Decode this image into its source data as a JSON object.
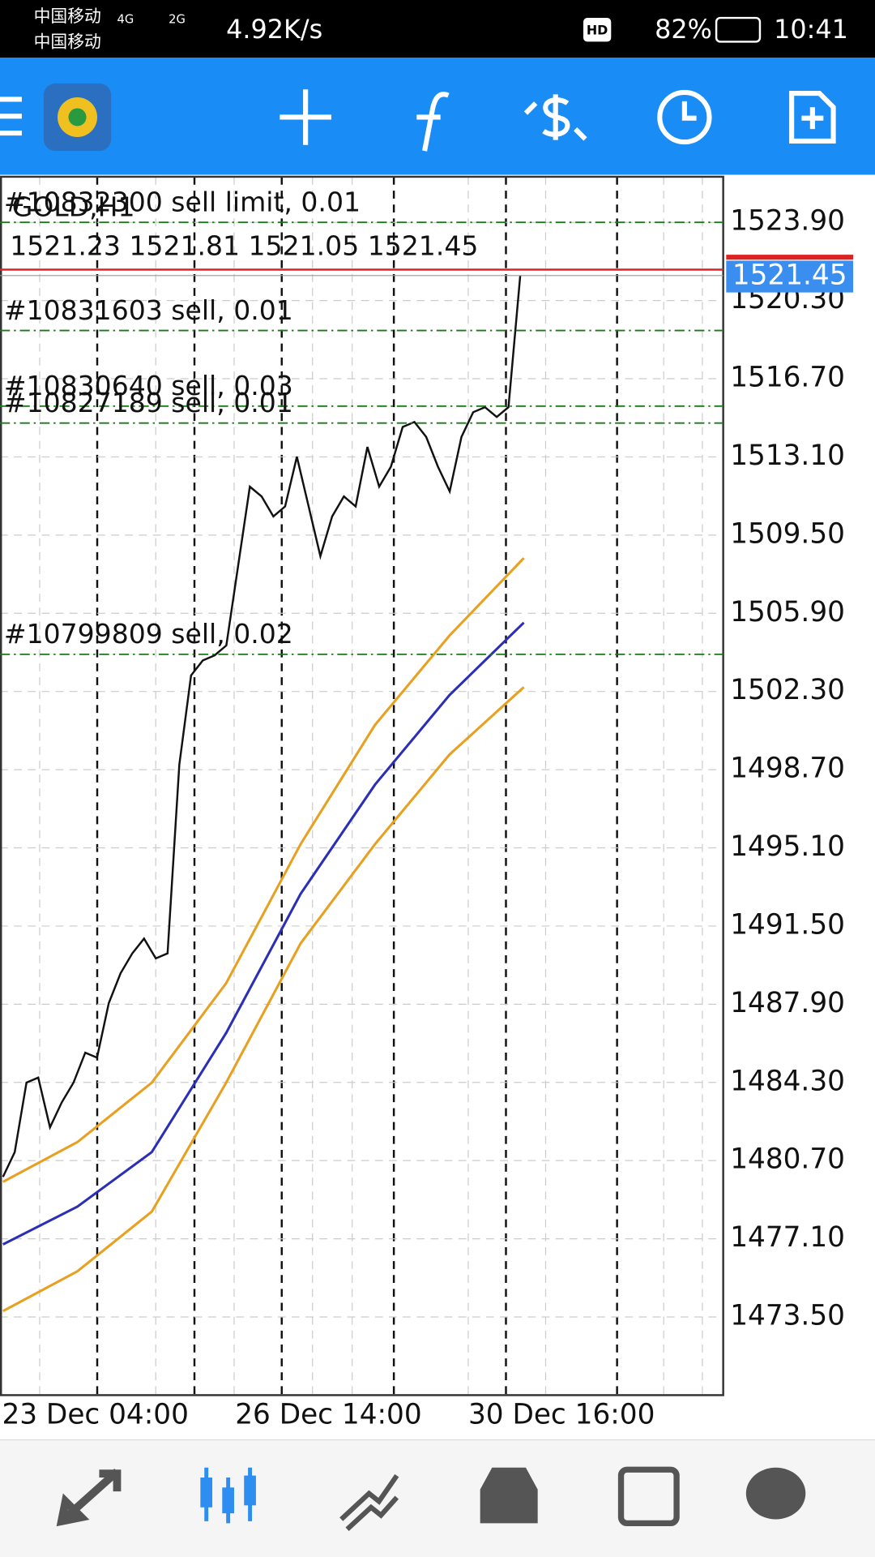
{
  "status_bar": {
    "carrier1": "中国移动",
    "carrier2": "中国移动",
    "network1": "4G",
    "network2": "2G",
    "speed": "4.92K/s",
    "hd": "HD",
    "battery": "82%",
    "time": "10:41"
  },
  "chart_data": {
    "type": "line",
    "title": "GOLD,H1",
    "subtitle": "1521.23 1521.81 1521.05 1521.45",
    "x_labels": [
      "23 Dec 04:00",
      "26 Dec 14:00",
      "30 Dec 16:00"
    ],
    "ylim": [
      1469.9,
      1526.0
    ],
    "yticks": [
      {
        "value": 1523.9,
        "label": "1523.90"
      },
      {
        "value": 1520.3,
        "label": "1520.30"
      },
      {
        "value": 1516.7,
        "label": "1516.70"
      },
      {
        "value": 1513.1,
        "label": "1513.10"
      },
      {
        "value": 1509.5,
        "label": "1509.50"
      },
      {
        "value": 1505.9,
        "label": "1505.90"
      },
      {
        "value": 1502.3,
        "label": "1502.30"
      },
      {
        "value": 1498.7,
        "label": "1498.70"
      },
      {
        "value": 1495.1,
        "label": "1495.10"
      },
      {
        "value": 1491.5,
        "label": "1491.50"
      },
      {
        "value": 1487.9,
        "label": "1487.90"
      },
      {
        "value": 1484.3,
        "label": "1484.30"
      },
      {
        "value": 1480.7,
        "label": "1480.70"
      },
      {
        "value": 1477.1,
        "label": "1477.10"
      },
      {
        "value": 1473.5,
        "label": "1473.50"
      }
    ],
    "grid": true,
    "series": [
      {
        "color": "#111111",
        "values": [
          1479.95,
          1481.09,
          1484.29,
          1484.52,
          1482.23,
          1483.38,
          1484.29,
          1485.67,
          1485.44,
          1487.95,
          1489.32,
          1490.24,
          1490.92,
          1490.01,
          1490.24,
          1498.93,
          1503.04,
          1503.73,
          1503.96,
          1504.42,
          1508.08,
          1511.73,
          1511.28,
          1510.36,
          1510.82,
          1513.11,
          1510.82,
          1508.53,
          1510.36,
          1511.28,
          1510.82,
          1513.56,
          1511.73,
          1512.65,
          1514.48,
          1514.71,
          1514.02,
          1512.65,
          1511.51,
          1514.02,
          1515.16,
          1515.39,
          1514.94,
          1515.39,
          1521.45
        ]
      },
      {
        "color": "#e8a020",
        "values": [
          1479.72,
          1481.55,
          1484.29,
          1488.87,
          1495.27,
          1500.76,
          1504.87,
          1508.44
        ]
      },
      {
        "color": "#2b2fb8",
        "values": [
          1476.84,
          1478.58,
          1481.09,
          1486.58,
          1492.98,
          1498.01,
          1502.13,
          1505.47
        ]
      },
      {
        "color": "#e8a020",
        "values": [
          1473.77,
          1475.6,
          1478.35,
          1484.29,
          1490.7,
          1495.27,
          1499.39,
          1502.5
        ]
      }
    ],
    "current_price": 1521.45,
    "orders": [
      {
        "label": "#10832300 sell limit, 0.01",
        "price": 1523.9
      },
      {
        "label": "#10831603 sell, 0.01",
        "price": 1518.92
      },
      {
        "label": "#10830640 sell, 0.03",
        "price": 1515.44
      },
      {
        "label": "#10827189 sell, 0.01",
        "price": 1514.66
      },
      {
        "label": "#10799809 sell, 0.02",
        "price": 1504.01
      }
    ]
  }
}
